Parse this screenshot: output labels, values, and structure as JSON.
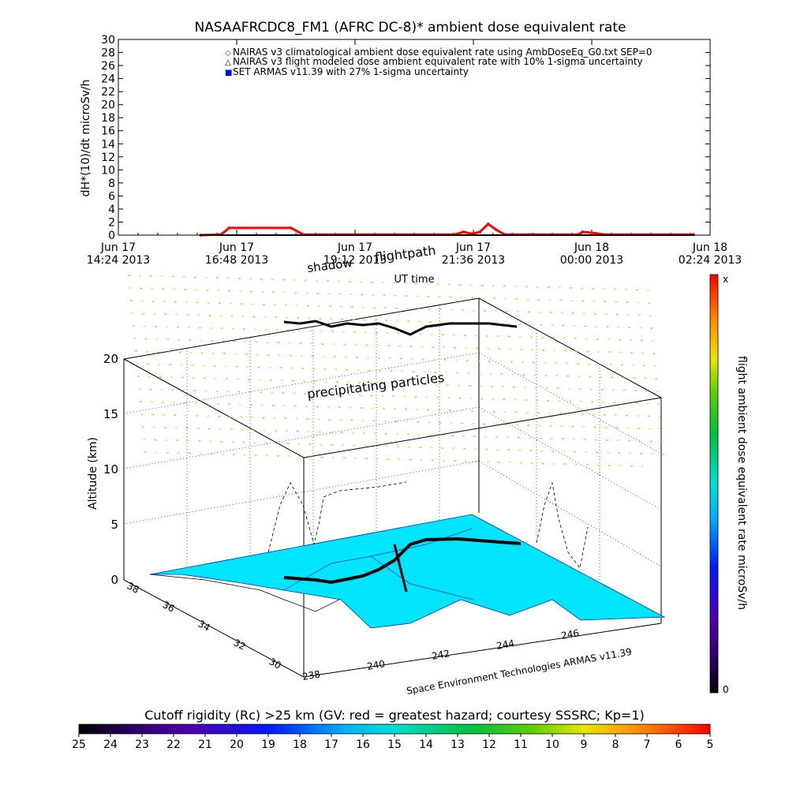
{
  "colors": {
    "nairas_climatological": "#ff0000",
    "nairas_flight_modeled": "#000000",
    "armas": "#0000ff",
    "ground_map": "#00e5ff",
    "precip_particles": "#7ed321",
    "flight_path": "#000000"
  },
  "chart_data": [
    {
      "type": "line",
      "title": "NASAAFRCDC8_FM1 (AFRC DC-8)* ambient dose equivalent rate",
      "ylabel": "dH*(10)/dt microSv/h",
      "xlabel": "UT time",
      "ylim": [
        0,
        30
      ],
      "yticks": [
        0,
        2,
        4,
        6,
        8,
        10,
        12,
        14,
        16,
        18,
        20,
        22,
        24,
        26,
        28,
        30
      ],
      "xticks": [
        {
          "t": 0,
          "line1": "Jun 17",
          "line2": "14:24 2013"
        },
        {
          "t": 144,
          "line1": "Jun 17",
          "line2": "16:48 2013"
        },
        {
          "t": 288,
          "line1": "Jun 17",
          "line2": "19:12 2013"
        },
        {
          "t": 432,
          "line1": "Jun 17",
          "line2": "21:36 2013"
        },
        {
          "t": 576,
          "line1": "Jun 18",
          "line2": "00:00 2013"
        },
        {
          "t": 720,
          "line1": "Jun 18",
          "line2": "02:24 2013"
        }
      ],
      "x_unit": "minutes after Jun 17 14:24 2013 UT",
      "legend": [
        {
          "symbol": "◇",
          "color": "#ff0000",
          "label": "NAIRAS v3 climatological ambient dose equivalent rate using AmbDoseEq_G0.txt SEP=0"
        },
        {
          "symbol": "△",
          "color": "#000000",
          "label": "NAIRAS v3 flight modeled dose ambient equivalent rate with 10% 1-sigma uncertainty"
        },
        {
          "symbol": "■",
          "color": "#0000ff",
          "label": "SET ARMAS v11.39 with 27% 1-sigma uncertainty"
        }
      ],
      "legend_position": "top",
      "series": [
        {
          "name": "NAIRAS v3 climatological ambient dose equivalent rate using AmbDoseEq_G0.txt SEP=0",
          "x": [
            100,
            125,
            135,
            210,
            225,
            410,
            420,
            430,
            440,
            450,
            460,
            470,
            478,
            500,
            560,
            565,
            580,
            590,
            600,
            700
          ],
          "y": [
            0.0,
            0.1,
            1.1,
            1.1,
            0.1,
            0.1,
            0.5,
            0.2,
            0.5,
            1.7,
            0.8,
            0.1,
            0.1,
            0.1,
            0.1,
            0.5,
            0.3,
            0.1,
            0.1,
            0.1
          ]
        },
        {
          "name": "NAIRAS v3 flight modeled dose ambient equivalent rate with 10% 1-sigma uncertainty",
          "x": [
            100,
            700
          ],
          "y": [
            0.0,
            0.0
          ]
        }
      ]
    },
    {
      "type": "scatter",
      "annotations": [
        "shadow",
        "flightpath",
        "precipitating particles"
      ],
      "ylabel": "Altitude (km)",
      "zticks": [
        0,
        5,
        10,
        15,
        20
      ],
      "zlim": [
        0,
        20
      ],
      "lat_ticks": [
        30,
        32,
        34,
        36,
        38
      ],
      "lon_ticks": [
        238,
        240,
        242,
        244,
        246
      ],
      "credit": "Space Environment Technologies ARMAS v11.39"
    }
  ],
  "colorbar_right": {
    "label": "flight ambient dose equivalent rate microSv/h",
    "top_label": "x",
    "bottom_label": "0"
  },
  "colorbar_bottom": {
    "label": "Cutoff rigidity (Rc) >25 km (GV: red = greatest hazard; courtesy SSSRC; Kp=1)",
    "ticks": [
      "25",
      "24",
      "23",
      "22",
      "21",
      "20",
      "19",
      "18",
      "17",
      "16",
      "15",
      "14",
      "13",
      "12",
      "11",
      "10",
      "9",
      "8",
      "7",
      "6",
      "5"
    ]
  }
}
